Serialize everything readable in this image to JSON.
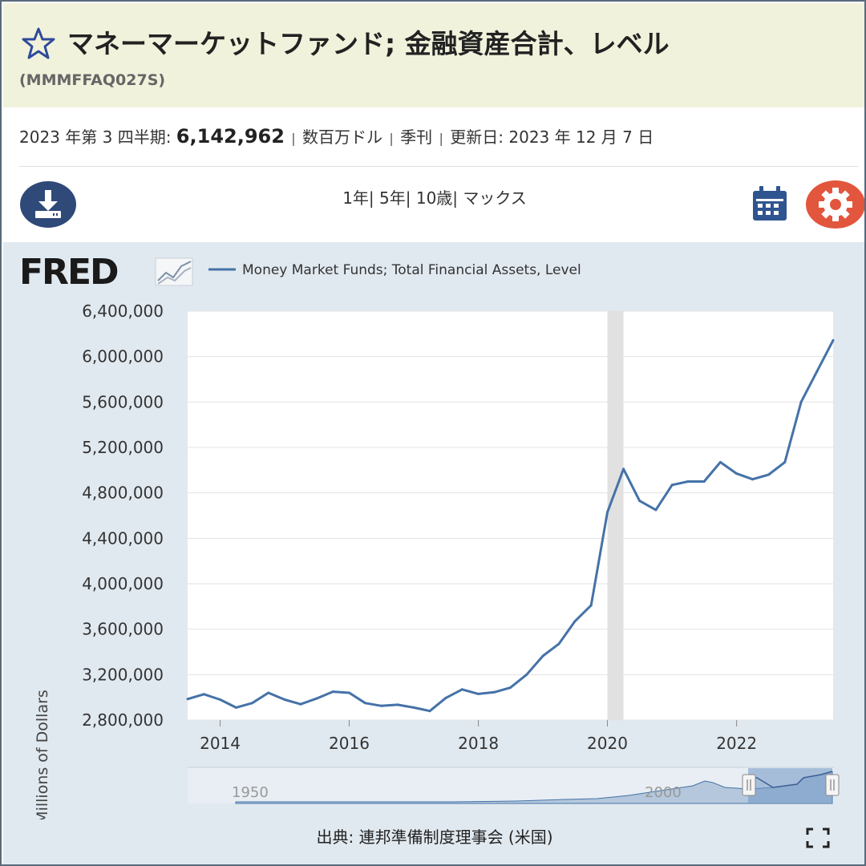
{
  "header": {
    "title": "マネーマーケットファンド; 金融資産合計、レベル",
    "series_id": "(MMMFFAQ027S)"
  },
  "meta": {
    "period_label": "2023 年第 3 四半期:",
    "value": "6,142,962",
    "units": "数百万ドル",
    "frequency": "季刊",
    "updated_label": "更新日:",
    "updated_date": "2023 年 12 月 7 日",
    "separator": "|"
  },
  "toolbar": {
    "range_1y": "1年|",
    "range_5y": "5年|",
    "range_10y": "10歳|",
    "range_max": "マックス",
    "download_icon": "download-icon",
    "calendar_icon": "calendar-icon",
    "settings_icon": "gear-icon"
  },
  "logo": {
    "text": "FRED"
  },
  "source": "出典: 連邦準備制度理事会 (米国)",
  "colors": {
    "line": "#4572a7",
    "panel_bg": "#e1e9f0",
    "title_band": "#f1f2dc",
    "recession": "#e1e1e1",
    "download": "#2f4a78",
    "settings": "#e2563d"
  },
  "chart_data": {
    "type": "line",
    "legend": "Money Market Funds; Total Financial Assets, Level",
    "ylabel": "Millions of Dollars",
    "xlabel": "",
    "ylim": [
      2800000,
      6400000
    ],
    "xlim": [
      "2013-07-01",
      "2023-07-01"
    ],
    "y_ticks": [
      "6,400,000",
      "6,000,000",
      "5,600,000",
      "5,200,000",
      "4,800,000",
      "4,400,000",
      "4,000,000",
      "3,600,000",
      "3,200,000",
      "2,800,000"
    ],
    "y_tick_values": [
      6400000,
      6000000,
      5600000,
      5200000,
      4800000,
      4400000,
      4000000,
      3600000,
      3200000,
      2800000
    ],
    "x_ticks": [
      "2014",
      "2016",
      "2018",
      "2020",
      "2022"
    ],
    "x_tick_values": [
      "2014-01-01",
      "2016-01-01",
      "2018-01-01",
      "2020-01-01",
      "2022-01-01"
    ],
    "grid": true,
    "legend_position": "top-left",
    "recession": {
      "start": "2020-01-01",
      "end": "2020-04-01"
    },
    "series": [
      {
        "name": "Money Market Funds; Total Financial Assets, Level",
        "x": [
          "2013-07-01",
          "2013-10-01",
          "2014-01-01",
          "2014-04-01",
          "2014-07-01",
          "2014-10-01",
          "2015-01-01",
          "2015-04-01",
          "2015-07-01",
          "2015-10-01",
          "2016-01-01",
          "2016-04-01",
          "2016-07-01",
          "2016-10-01",
          "2017-01-01",
          "2017-04-01",
          "2017-07-01",
          "2017-10-01",
          "2018-01-01",
          "2018-04-01",
          "2018-07-01",
          "2018-10-01",
          "2019-01-01",
          "2019-04-01",
          "2019-07-01",
          "2019-10-01",
          "2020-01-01",
          "2020-04-01",
          "2020-07-01",
          "2020-10-01",
          "2021-01-01",
          "2021-04-01",
          "2021-07-01",
          "2021-10-01",
          "2022-01-01",
          "2022-04-01",
          "2022-07-01",
          "2022-10-01",
          "2023-01-01",
          "2023-04-01",
          "2023-07-01"
        ],
        "y": [
          2985000,
          3027000,
          2980000,
          2910000,
          2950000,
          3040000,
          2980000,
          2940000,
          2990000,
          3050000,
          3040000,
          2950000,
          2925000,
          2935000,
          2910000,
          2880000,
          2995000,
          3070000,
          3030000,
          3045000,
          3085000,
          3200000,
          3365000,
          3470000,
          3670000,
          3810000,
          4630000,
          5010000,
          4730000,
          4650000,
          4870000,
          4900000,
          4900000,
          5070000,
          4970000,
          4920000,
          4960000,
          5070000,
          5600000,
          5870000,
          6142962
        ]
      }
    ]
  },
  "navigator": {
    "labels": [
      "1950",
      "2000"
    ]
  }
}
